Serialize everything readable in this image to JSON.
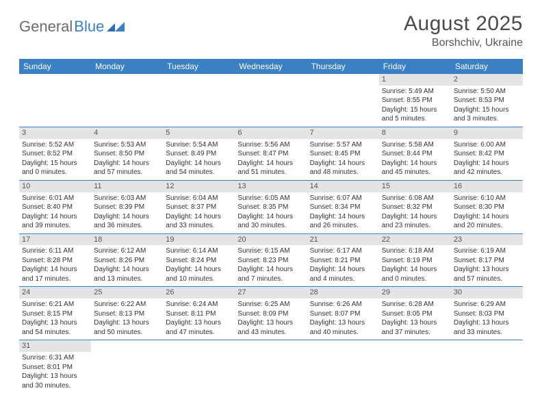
{
  "brand": {
    "part1": "General",
    "part2": "Blue"
  },
  "title": "August 2025",
  "location": "Borshchiv, Ukraine",
  "day_names": [
    "Sunday",
    "Monday",
    "Tuesday",
    "Wednesday",
    "Thursday",
    "Friday",
    "Saturday"
  ],
  "colors": {
    "header_bg": "#3b7fc4",
    "header_fg": "#ffffff",
    "daynum_bg": "#e4e4e4",
    "row_border": "#3b7fc4"
  },
  "weeks": [
    [
      null,
      null,
      null,
      null,
      null,
      {
        "n": "1",
        "sr": "Sunrise: 5:49 AM",
        "ss": "Sunset: 8:55 PM",
        "dl": "Daylight: 15 hours and 5 minutes."
      },
      {
        "n": "2",
        "sr": "Sunrise: 5:50 AM",
        "ss": "Sunset: 8:53 PM",
        "dl": "Daylight: 15 hours and 3 minutes."
      }
    ],
    [
      {
        "n": "3",
        "sr": "Sunrise: 5:52 AM",
        "ss": "Sunset: 8:52 PM",
        "dl": "Daylight: 15 hours and 0 minutes."
      },
      {
        "n": "4",
        "sr": "Sunrise: 5:53 AM",
        "ss": "Sunset: 8:50 PM",
        "dl": "Daylight: 14 hours and 57 minutes."
      },
      {
        "n": "5",
        "sr": "Sunrise: 5:54 AM",
        "ss": "Sunset: 8:49 PM",
        "dl": "Daylight: 14 hours and 54 minutes."
      },
      {
        "n": "6",
        "sr": "Sunrise: 5:56 AM",
        "ss": "Sunset: 8:47 PM",
        "dl": "Daylight: 14 hours and 51 minutes."
      },
      {
        "n": "7",
        "sr": "Sunrise: 5:57 AM",
        "ss": "Sunset: 8:45 PM",
        "dl": "Daylight: 14 hours and 48 minutes."
      },
      {
        "n": "8",
        "sr": "Sunrise: 5:58 AM",
        "ss": "Sunset: 8:44 PM",
        "dl": "Daylight: 14 hours and 45 minutes."
      },
      {
        "n": "9",
        "sr": "Sunrise: 6:00 AM",
        "ss": "Sunset: 8:42 PM",
        "dl": "Daylight: 14 hours and 42 minutes."
      }
    ],
    [
      {
        "n": "10",
        "sr": "Sunrise: 6:01 AM",
        "ss": "Sunset: 8:40 PM",
        "dl": "Daylight: 14 hours and 39 minutes."
      },
      {
        "n": "11",
        "sr": "Sunrise: 6:03 AM",
        "ss": "Sunset: 8:39 PM",
        "dl": "Daylight: 14 hours and 36 minutes."
      },
      {
        "n": "12",
        "sr": "Sunrise: 6:04 AM",
        "ss": "Sunset: 8:37 PM",
        "dl": "Daylight: 14 hours and 33 minutes."
      },
      {
        "n": "13",
        "sr": "Sunrise: 6:05 AM",
        "ss": "Sunset: 8:35 PM",
        "dl": "Daylight: 14 hours and 30 minutes."
      },
      {
        "n": "14",
        "sr": "Sunrise: 6:07 AM",
        "ss": "Sunset: 8:34 PM",
        "dl": "Daylight: 14 hours and 26 minutes."
      },
      {
        "n": "15",
        "sr": "Sunrise: 6:08 AM",
        "ss": "Sunset: 8:32 PM",
        "dl": "Daylight: 14 hours and 23 minutes."
      },
      {
        "n": "16",
        "sr": "Sunrise: 6:10 AM",
        "ss": "Sunset: 8:30 PM",
        "dl": "Daylight: 14 hours and 20 minutes."
      }
    ],
    [
      {
        "n": "17",
        "sr": "Sunrise: 6:11 AM",
        "ss": "Sunset: 8:28 PM",
        "dl": "Daylight: 14 hours and 17 minutes."
      },
      {
        "n": "18",
        "sr": "Sunrise: 6:12 AM",
        "ss": "Sunset: 8:26 PM",
        "dl": "Daylight: 14 hours and 13 minutes."
      },
      {
        "n": "19",
        "sr": "Sunrise: 6:14 AM",
        "ss": "Sunset: 8:24 PM",
        "dl": "Daylight: 14 hours and 10 minutes."
      },
      {
        "n": "20",
        "sr": "Sunrise: 6:15 AM",
        "ss": "Sunset: 8:23 PM",
        "dl": "Daylight: 14 hours and 7 minutes."
      },
      {
        "n": "21",
        "sr": "Sunrise: 6:17 AM",
        "ss": "Sunset: 8:21 PM",
        "dl": "Daylight: 14 hours and 4 minutes."
      },
      {
        "n": "22",
        "sr": "Sunrise: 6:18 AM",
        "ss": "Sunset: 8:19 PM",
        "dl": "Daylight: 14 hours and 0 minutes."
      },
      {
        "n": "23",
        "sr": "Sunrise: 6:19 AM",
        "ss": "Sunset: 8:17 PM",
        "dl": "Daylight: 13 hours and 57 minutes."
      }
    ],
    [
      {
        "n": "24",
        "sr": "Sunrise: 6:21 AM",
        "ss": "Sunset: 8:15 PM",
        "dl": "Daylight: 13 hours and 54 minutes."
      },
      {
        "n": "25",
        "sr": "Sunrise: 6:22 AM",
        "ss": "Sunset: 8:13 PM",
        "dl": "Daylight: 13 hours and 50 minutes."
      },
      {
        "n": "26",
        "sr": "Sunrise: 6:24 AM",
        "ss": "Sunset: 8:11 PM",
        "dl": "Daylight: 13 hours and 47 minutes."
      },
      {
        "n": "27",
        "sr": "Sunrise: 6:25 AM",
        "ss": "Sunset: 8:09 PM",
        "dl": "Daylight: 13 hours and 43 minutes."
      },
      {
        "n": "28",
        "sr": "Sunrise: 6:26 AM",
        "ss": "Sunset: 8:07 PM",
        "dl": "Daylight: 13 hours and 40 minutes."
      },
      {
        "n": "29",
        "sr": "Sunrise: 6:28 AM",
        "ss": "Sunset: 8:05 PM",
        "dl": "Daylight: 13 hours and 37 minutes."
      },
      {
        "n": "30",
        "sr": "Sunrise: 6:29 AM",
        "ss": "Sunset: 8:03 PM",
        "dl": "Daylight: 13 hours and 33 minutes."
      }
    ],
    [
      {
        "n": "31",
        "sr": "Sunrise: 6:31 AM",
        "ss": "Sunset: 8:01 PM",
        "dl": "Daylight: 13 hours and 30 minutes."
      },
      null,
      null,
      null,
      null,
      null,
      null
    ]
  ]
}
